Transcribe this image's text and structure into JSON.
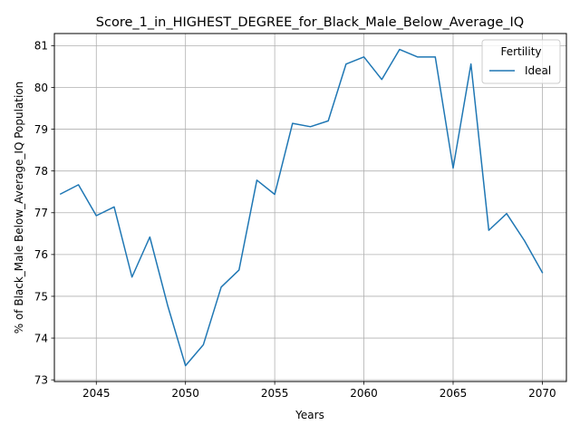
{
  "chart_data": {
    "type": "line",
    "title": "Score_1_in_HIGHEST_DEGREE_for_Black_Male_Below_Average_IQ",
    "xlabel": "Years",
    "ylabel": "% of Black_Male Below_Average_IQ Population",
    "xlim": [
      2042.65,
      2071.35
    ],
    "ylim": [
      72.96,
      81.29
    ],
    "x_ticks": [
      2045,
      2050,
      2055,
      2060,
      2065,
      2070
    ],
    "y_ticks": [
      73,
      74,
      75,
      76,
      77,
      78,
      79,
      80,
      81
    ],
    "grid": true,
    "legend": {
      "title": "Fertility",
      "position": "top-right"
    },
    "series": [
      {
        "name": "Ideal",
        "color": "#1f77b4",
        "x": [
          2043,
          2044,
          2045,
          2046,
          2047,
          2048,
          2049,
          2050,
          2051,
          2052,
          2053,
          2054,
          2055,
          2056,
          2057,
          2058,
          2059,
          2060,
          2061,
          2062,
          2063,
          2064,
          2065,
          2066,
          2067,
          2068,
          2069,
          2070
        ],
        "values": [
          77.45,
          77.67,
          76.93,
          77.14,
          75.46,
          76.42,
          74.78,
          73.34,
          73.84,
          75.22,
          75.63,
          77.78,
          77.44,
          79.14,
          79.06,
          79.2,
          80.56,
          80.73,
          80.19,
          80.91,
          80.73,
          80.73,
          78.07,
          80.56,
          76.58,
          76.98,
          76.33,
          75.57
        ]
      }
    ]
  }
}
